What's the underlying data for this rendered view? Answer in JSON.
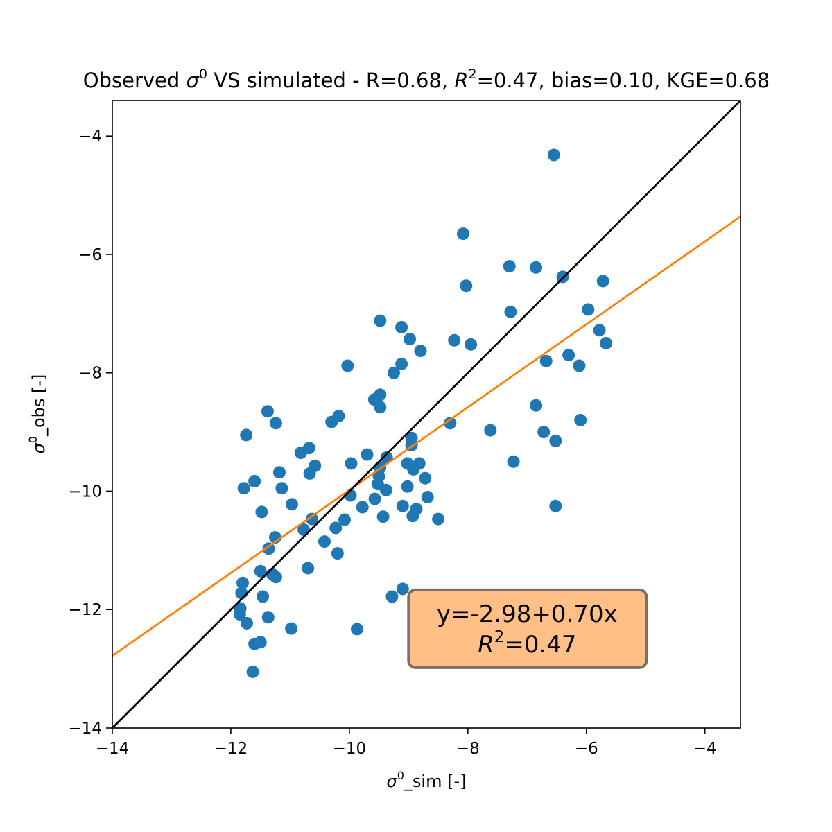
{
  "chart_data": {
    "type": "scatter",
    "title": {
      "prefix": "Observed ",
      "sigma": "σ",
      "sup": "0",
      "suffix": " VS simulated - R=0.68, ",
      "r2": "R",
      "r2_sup": "2",
      "rest": "=0.47, bias=0.10, KGE=0.68"
    },
    "xlabel": {
      "sigma": "σ",
      "sup": "0",
      "rest": "_sim [-]"
    },
    "ylabel": {
      "sigma": "σ",
      "sup": "0",
      "rest": "_obs [-]"
    },
    "xlim": [
      -14,
      -3.4
    ],
    "ylim": [
      -14,
      -3.4
    ],
    "xticks": [
      -14,
      -12,
      -10,
      -8,
      -6,
      -4
    ],
    "yticks": [
      -14,
      -12,
      -10,
      -8,
      -6,
      -4
    ],
    "xtick_labels": [
      "−14",
      "−12",
      "−10",
      "−8",
      "−6",
      "−4"
    ],
    "ytick_labels": [
      "−14",
      "−12",
      "−10",
      "−8",
      "−6",
      "−4"
    ],
    "grid": false,
    "colors": {
      "points": "#1f77b4",
      "identity": "#000000",
      "fit": "#ff7f0e",
      "annotation_fill": "#ffbf86",
      "annotation_edge": "#7a7067"
    },
    "series": [
      {
        "type": "scatter",
        "x": [
          -6.55,
          -8.08,
          -7.3,
          -6.85,
          -6.4,
          -8.03,
          -5.72,
          -7.28,
          -5.97,
          -9.48,
          -5.78,
          -9.12,
          -8.98,
          -8.23,
          -7.95,
          -5.67,
          -8.8,
          -9.12,
          -6.3,
          -6.68,
          -9.25,
          -6.12,
          -10.03,
          -9.48,
          -9.58,
          -9.48,
          -6.85,
          -11.38,
          -10.18,
          -10.3,
          -6.1,
          -11.24,
          -8.3,
          -7.62,
          -6.72,
          -6.52,
          -11.74,
          -8.95,
          -10.68,
          -10.82,
          -9.7,
          -8.95,
          -10.58,
          -9.37,
          -9.97,
          -8.82,
          -9.02,
          -7.23,
          -8.92,
          -9.48,
          -9.5,
          -11.18,
          -10.67,
          -11.6,
          -8.72,
          -11.78,
          -9.52,
          -11.14,
          -9.02,
          -9.38,
          -9.98,
          -8.68,
          -9.57,
          -9.78,
          -6.52,
          -10.97,
          -11.48,
          -8.87,
          -9.1,
          -8.93,
          -8.5,
          -9.43,
          -10.63,
          -10.08,
          -10.77,
          -10.23,
          -11.25,
          -10.42,
          -11.36,
          -10.2,
          -11.5,
          -10.7,
          -11.3,
          -11.24,
          -8.2,
          -9.1,
          -11.8,
          -11.46,
          -9.28,
          -11.82,
          -11.37,
          -11.84,
          -9.87,
          -10.98,
          -11.73,
          -11.85,
          -11.6,
          -11.5,
          -11.63
        ],
        "y": [
          -4.32,
          -5.65,
          -6.2,
          -6.22,
          -6.38,
          -6.53,
          -6.45,
          -6.97,
          -6.93,
          -7.12,
          -7.28,
          -7.23,
          -7.43,
          -7.45,
          -7.52,
          -7.5,
          -7.63,
          -7.85,
          -7.7,
          -7.8,
          -8.0,
          -7.88,
          -7.88,
          -8.37,
          -8.45,
          -8.58,
          -8.55,
          -8.65,
          -8.73,
          -8.83,
          -8.8,
          -8.85,
          -8.85,
          -8.97,
          -9.0,
          -9.15,
          -9.05,
          -9.1,
          -9.27,
          -9.35,
          -9.38,
          -9.22,
          -9.57,
          -9.43,
          -9.53,
          -9.53,
          -9.53,
          -9.5,
          -9.63,
          -9.6,
          -9.75,
          -9.68,
          -9.7,
          -9.83,
          -9.78,
          -9.95,
          -9.88,
          -9.95,
          -9.92,
          -9.98,
          -10.07,
          -10.1,
          -10.13,
          -10.27,
          -10.25,
          -10.22,
          -10.35,
          -10.3,
          -10.25,
          -10.42,
          -10.47,
          -10.43,
          -10.47,
          -10.48,
          -10.65,
          -10.62,
          -10.78,
          -10.85,
          -10.97,
          -11.05,
          -11.35,
          -11.3,
          -11.4,
          -11.45,
          -12.05,
          -11.65,
          -11.55,
          -11.78,
          -11.78,
          -11.72,
          -12.13,
          -11.98,
          -12.33,
          -12.32,
          -12.23,
          -12.08,
          -12.58,
          -12.55,
          -13.05
        ]
      },
      {
        "type": "line",
        "name": "identity",
        "x": [
          -14,
          -3.4
        ],
        "y": [
          -14,
          -3.4
        ]
      },
      {
        "type": "line",
        "name": "fit",
        "x": [
          -14,
          -3.4
        ],
        "y": [
          -12.78,
          -5.36
        ]
      }
    ],
    "annotation": {
      "line1": "y=-2.98+0.70x",
      "line2_r": "R",
      "line2_sup": "2",
      "line2_rest": "=0.47",
      "anchor": [
        -7.0,
        -12.3
      ]
    }
  }
}
